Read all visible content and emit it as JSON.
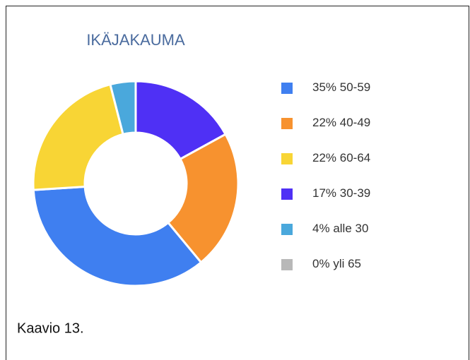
{
  "chart_data": {
    "type": "donut",
    "title": "IKÄJAKAUMA",
    "categories": [
      "50-59",
      "40-49",
      "60-64",
      "30-39",
      "alle 30",
      "yli 65"
    ],
    "values": [
      35,
      22,
      22,
      17,
      4,
      0
    ],
    "value_labels": [
      "35%",
      "22%",
      "22%",
      "17%",
      "4%",
      "0%"
    ],
    "colors": [
      "#3f7ff0",
      "#f7922f",
      "#f8d535",
      "#4f30f5",
      "#4aa8dc",
      "#b8b8b8"
    ],
    "legend": "right",
    "caption": "Kaavio 13."
  }
}
